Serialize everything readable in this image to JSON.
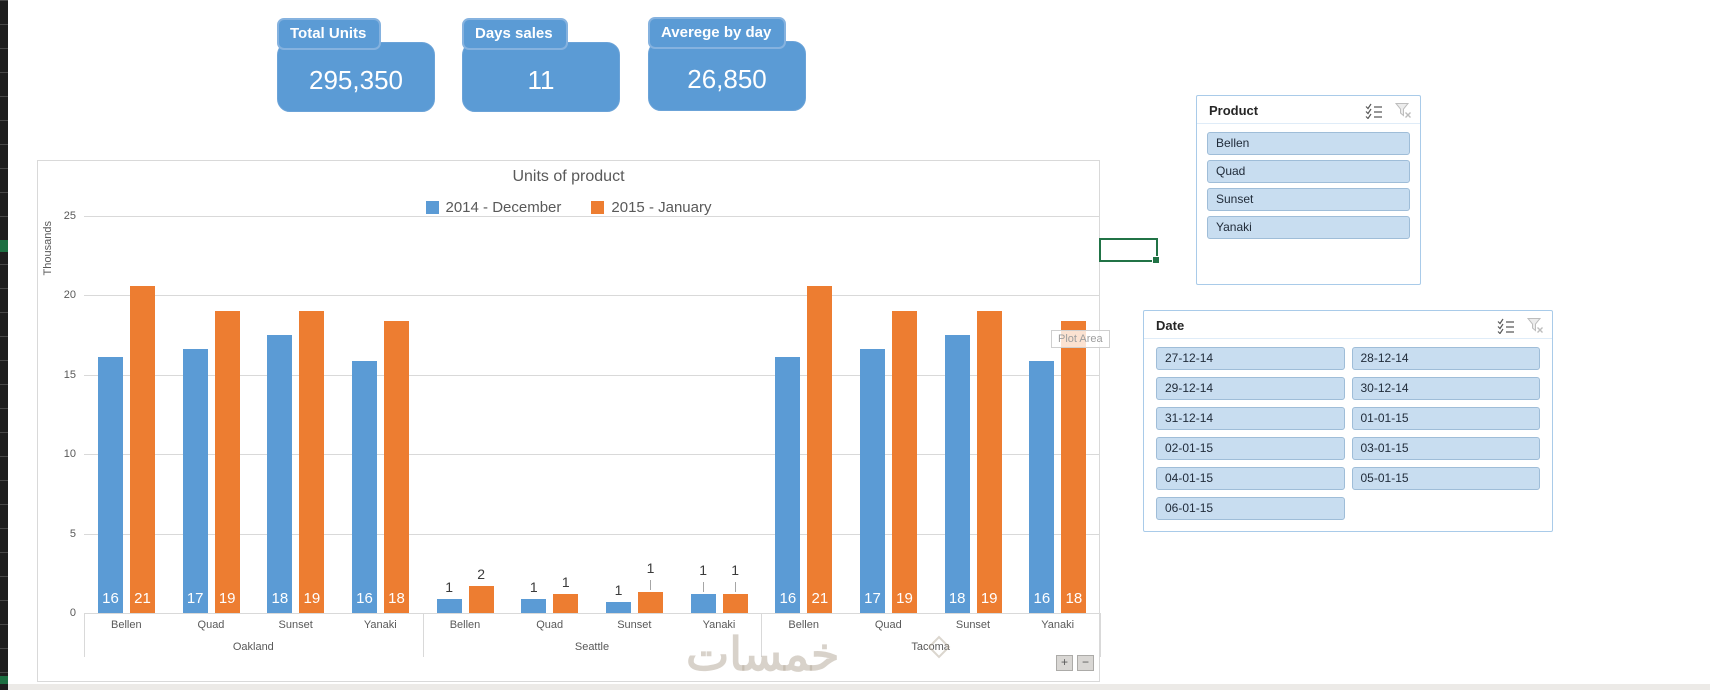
{
  "kpi_cards": [
    {
      "label": "Total Units",
      "value": "295,350"
    },
    {
      "label": "Days sales",
      "value": "11"
    },
    {
      "label": "Averege by day",
      "value": "26,850"
    }
  ],
  "chart": {
    "title": "Units of product",
    "y_axis_title": "Thousands",
    "plot_area_tooltip": "Plot Area",
    "zoom_in_label": "+",
    "zoom_out_label": "−"
  },
  "chart_data": {
    "type": "bar",
    "title": "Units of product",
    "ylabel": "Thousands",
    "units_note": "values in thousands",
    "ylim": [
      0,
      25
    ],
    "y_ticks": [
      0,
      5,
      10,
      15,
      20,
      25
    ],
    "grid": true,
    "legend_position": "top",
    "group_labels": [
      "Oakland",
      "Seattle",
      "Tacoma"
    ],
    "categories": [
      "Bellen",
      "Quad",
      "Sunset",
      "Yanaki",
      "Bellen",
      "Quad",
      "Sunset",
      "Yanaki",
      "Bellen",
      "Quad",
      "Sunset",
      "Yanaki"
    ],
    "category_groups": [
      "Oakland",
      "Oakland",
      "Oakland",
      "Oakland",
      "Seattle",
      "Seattle",
      "Seattle",
      "Seattle",
      "Tacoma",
      "Tacoma",
      "Tacoma",
      "Tacoma"
    ],
    "series": [
      {
        "name": "2014 - December",
        "color": "#5B9BD5",
        "values": [
          16.1,
          16.6,
          17.5,
          15.9,
          0.9,
          0.9,
          0.7,
          1.2,
          16.1,
          16.6,
          17.5,
          15.9
        ],
        "labels": [
          "16",
          "17",
          "18",
          "16",
          "1",
          "1",
          "1",
          "1",
          "16",
          "17",
          "18",
          "16"
        ]
      },
      {
        "name": "2015 - January",
        "color": "#ED7D31",
        "values": [
          20.6,
          19.0,
          19.0,
          18.4,
          1.7,
          1.2,
          1.3,
          1.2,
          20.6,
          19.0,
          19.0,
          18.4
        ],
        "labels": [
          "21",
          "19",
          "19",
          "18",
          "2",
          "1",
          "1",
          "1",
          "21",
          "19",
          "19",
          "18"
        ]
      }
    ],
    "callout_stems": [
      {
        "series": 0,
        "index": 7
      },
      {
        "series": 1,
        "index": 6
      },
      {
        "series": 1,
        "index": 7
      }
    ]
  },
  "slicers": {
    "product": {
      "title": "Product",
      "items": [
        "Bellen",
        "Quad",
        "Sunset",
        "Yanaki"
      ]
    },
    "date": {
      "title": "Date",
      "items": [
        "27-12-14",
        "28-12-14",
        "29-12-14",
        "30-12-14",
        "31-12-14",
        "01-01-15",
        "02-01-15",
        "03-01-15",
        "04-01-15",
        "05-01-15",
        "06-01-15"
      ]
    }
  },
  "watermark": "خمسات",
  "colors": {
    "series1": "#5B9BD5",
    "series2": "#ED7D31",
    "card_fill": "#5B9BD5",
    "slicer_item_fill": "#C8DDF0",
    "selection_green": "#217346",
    "axis_text": "#595959",
    "gridline": "#D9D9D9"
  }
}
